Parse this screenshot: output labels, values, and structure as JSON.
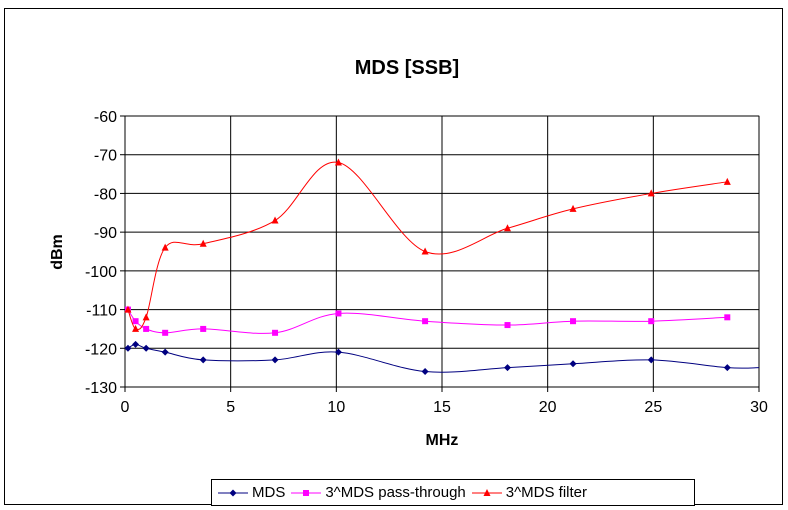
{
  "chart_data": {
    "type": "line",
    "title": "MDS [SSB]",
    "xlabel": "MHz",
    "ylabel": "dBm",
    "xlim": [
      0,
      30
    ],
    "ylim": [
      -130,
      -60
    ],
    "x_ticks": [
      0,
      5,
      10,
      15,
      20,
      25,
      30
    ],
    "y_ticks": [
      -60,
      -70,
      -80,
      -90,
      -100,
      -110,
      -120,
      -130
    ],
    "grid": true,
    "legend_position": "bottom",
    "series": [
      {
        "name": "MDS",
        "color": "#000080",
        "marker": "diamond",
        "x": [
          0.14,
          0.5,
          1.0,
          1.9,
          3.7,
          7.1,
          10.1,
          14.2,
          18.1,
          21.2,
          24.9,
          28.5
        ],
        "y": [
          -120,
          -119,
          -120,
          -121,
          -123,
          -123,
          -121,
          -126,
          -125,
          -124,
          -123,
          -125
        ],
        "trailing_line_to_x": 30
      },
      {
        "name": "3^MDS pass-through",
        "color": "#FF00FF",
        "marker": "square",
        "x": [
          0.14,
          0.5,
          1.0,
          1.9,
          3.7,
          7.1,
          10.1,
          14.2,
          18.1,
          21.2,
          24.9,
          28.5
        ],
        "y": [
          -110,
          -113,
          -115,
          -116,
          -115,
          -116,
          -111,
          -113,
          -114,
          -113,
          -113,
          -112
        ]
      },
      {
        "name": "3^MDS filter",
        "color": "#FF0000",
        "marker": "triangle",
        "x": [
          0.14,
          0.5,
          1.0,
          1.9,
          3.7,
          7.1,
          10.1,
          14.2,
          18.1,
          21.2,
          24.9,
          28.5
        ],
        "y": [
          -110,
          -115,
          -112,
          -94,
          -93,
          -87,
          -72,
          -95,
          -89,
          -84,
          -80,
          -77
        ]
      }
    ]
  }
}
